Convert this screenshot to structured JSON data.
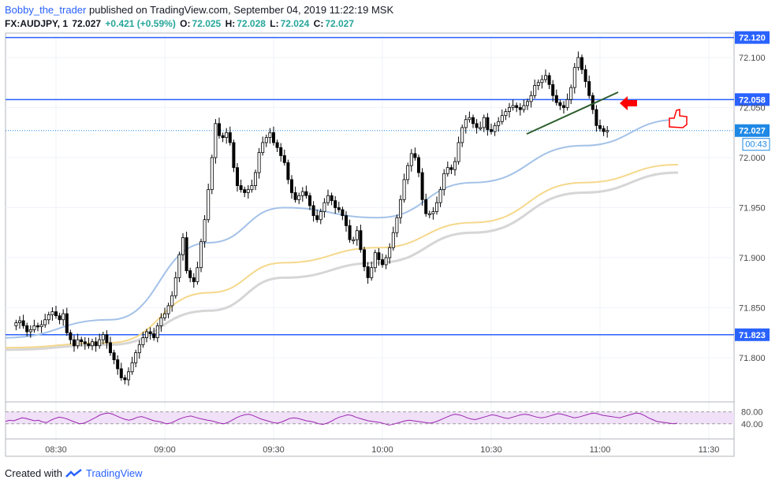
{
  "header": {
    "author": "Bobby_the_trader",
    "published_text": "published on TradingView.com, September 04, 2019 11:22:19 MSK",
    "symbol": "FX:AUDJPY, 1",
    "last": "72.027",
    "change": "+0.421 (+0.59%)",
    "o_label": "O:",
    "o_value": "72.025",
    "h_label": "H:",
    "h_value": "72.028",
    "l_label": "L:",
    "l_value": "72.024",
    "c_label": "C:",
    "c_value": "72.027"
  },
  "footer": {
    "created_with": "Created with",
    "brand": "TradingView"
  },
  "colors": {
    "bull": "#ffffff",
    "bear": "#000000",
    "level_line": "#2962ff",
    "price_line": "#1e88e5",
    "ema_fast": "#a4c2e8",
    "ema_mid": "#f5d88c",
    "ema_slow": "#d6d6d6",
    "rsi": "#9c27b0",
    "rsi_band": "#f0e0f8",
    "arrow": "#ff0000"
  },
  "chart_data": {
    "type": "candlestick",
    "price_axis": {
      "ticks": [
        72.1,
        72.05,
        72.0,
        71.95,
        71.9,
        71.85,
        71.8
      ],
      "tick_labels": [
        "72.100",
        "72.050",
        "72.000",
        "71.950",
        "71.900",
        "71.850",
        "71.800"
      ]
    },
    "time_axis": {
      "ticks": [
        "08:30",
        "09:00",
        "09:30",
        "10:00",
        "10:30",
        "11:00",
        "11:30"
      ]
    },
    "levels": [
      {
        "name": "level-72120",
        "price": 72.12,
        "label": "72.120"
      },
      {
        "name": "level-72058",
        "price": 72.058,
        "label": "72.058"
      },
      {
        "name": "level-71823",
        "price": 71.823,
        "label": "71.823"
      }
    ],
    "last_price": {
      "price": 72.027,
      "label": "72.027",
      "countdown": "00:43"
    },
    "candles_start": "08:19",
    "candles_interval_minutes": 1,
    "closes": [
      71.835,
      71.837,
      71.832,
      71.826,
      71.828,
      71.832,
      71.831,
      71.833,
      71.838,
      71.843,
      71.846,
      71.842,
      71.838,
      71.844,
      71.825,
      71.818,
      71.812,
      71.818,
      71.816,
      71.814,
      71.812,
      71.816,
      71.812,
      71.818,
      71.823,
      71.815,
      71.805,
      71.798,
      71.789,
      71.78,
      71.778,
      71.786,
      71.795,
      71.805,
      71.813,
      71.82,
      71.826,
      71.824,
      71.82,
      71.832,
      71.84,
      71.844,
      71.852,
      71.862,
      71.88,
      71.903,
      71.92,
      71.887,
      71.88,
      71.876,
      71.89,
      71.916,
      71.938,
      71.968,
      72.0,
      72.034,
      72.022,
      72.02,
      72.025,
      72.015,
      71.99,
      71.972,
      71.968,
      71.965,
      71.968,
      71.972,
      71.985,
      72.005,
      72.015,
      72.02,
      72.025,
      72.015,
      72.01,
      72.002,
      71.995,
      71.978,
      71.965,
      71.958,
      71.962,
      71.966,
      71.962,
      71.952,
      71.942,
      71.938,
      71.946,
      71.955,
      71.962,
      71.957,
      71.95,
      71.948,
      71.942,
      71.932,
      71.918,
      71.918,
      71.927,
      71.908,
      71.891,
      71.88,
      71.89,
      71.905,
      71.898,
      71.893,
      71.9,
      71.91,
      71.925,
      71.94,
      71.958,
      71.978,
      71.992,
      72.004,
      72.0,
      71.985,
      71.958,
      71.944,
      71.944,
      71.946,
      71.955,
      71.968,
      71.984,
      71.99,
      71.988,
      71.996,
      72.015,
      72.03,
      72.038,
      72.04,
      72.034,
      72.03,
      72.03,
      72.04,
      72.028,
      72.026,
      72.032,
      72.036,
      72.042,
      72.046,
      72.05,
      72.052,
      72.05,
      72.048,
      72.052,
      72.056,
      72.062,
      72.072,
      72.075,
      72.078,
      72.082,
      72.073,
      72.062,
      72.055,
      72.052,
      72.05,
      72.058,
      72.07,
      72.09,
      72.1,
      72.088,
      72.076,
      72.062,
      72.048,
      72.032,
      72.029,
      72.026,
      72.027
    ],
    "ema_fast": [
      71.82,
      71.838,
      71.915,
      71.95,
      71.94,
      71.975,
      72.012,
      72.038
    ],
    "ema_mid": [
      71.81,
      71.815,
      71.865,
      71.895,
      71.91,
      71.935,
      71.975,
      71.993
    ],
    "ema_slow": [
      71.808,
      71.813,
      71.847,
      71.88,
      71.895,
      71.925,
      71.965,
      71.985
    ],
    "rsi": {
      "levels": [
        80.0,
        40.0
      ],
      "level_labels": [
        "80.00",
        "40.00"
      ],
      "values": [
        48,
        52,
        50,
        55,
        60,
        58,
        54,
        50,
        52,
        46,
        44,
        52,
        58,
        62,
        60,
        56,
        50,
        45,
        40,
        42,
        48,
        55,
        62,
        70,
        74,
        76,
        72,
        66,
        60,
        55,
        52,
        56,
        62,
        64,
        60,
        55,
        50,
        48,
        45,
        40,
        42,
        48,
        55,
        60,
        64,
        66,
        62,
        58,
        55,
        52,
        50,
        46,
        42,
        40,
        45,
        52,
        60,
        66,
        70,
        72,
        68,
        62,
        56,
        52,
        48,
        44,
        42,
        46,
        52,
        58,
        60,
        58,
        54,
        50,
        48,
        45,
        40,
        38,
        42,
        48,
        56,
        62,
        66,
        70,
        68,
        62,
        58,
        54,
        50,
        48,
        46,
        44,
        40,
        36,
        38,
        42,
        46,
        50,
        52,
        50,
        48,
        46,
        44,
        42,
        45,
        50,
        56,
        62,
        68,
        72,
        70,
        66,
        60,
        56,
        54,
        58,
        62,
        66,
        70,
        68,
        64,
        60,
        58,
        62,
        66,
        70,
        72,
        70,
        66,
        62,
        60,
        62,
        66,
        70,
        74,
        72,
        68,
        64,
        60,
        62,
        66,
        70,
        74,
        76,
        72,
        68,
        66,
        64,
        62,
        60,
        64,
        68,
        72,
        76,
        74,
        68,
        60,
        54,
        48,
        46,
        44,
        42,
        40,
        42
      ]
    }
  }
}
